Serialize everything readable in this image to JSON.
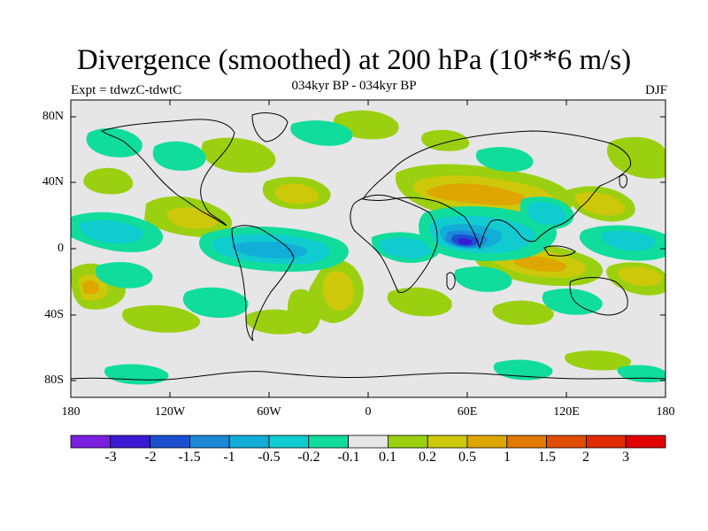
{
  "title": "Divergence (smoothed) at 200 hPa (10**6 m/s)",
  "experiment": "Expt = tdwzC-tdwtC",
  "period": "034kyr BP - 034kyr BP",
  "season": "DJF",
  "map": {
    "lat_ticks": [
      "80N",
      "40N",
      "0",
      "40S",
      "80S"
    ],
    "lon_ticks": [
      "180",
      "120W",
      "60W",
      "0",
      "60E",
      "120E",
      "180"
    ],
    "background_color": "#e6e6e6"
  },
  "colorbar": {
    "levels": [
      "-3",
      "-2",
      "-1.5",
      "-1",
      "-0.5",
      "-0.2",
      "-0.1",
      "0.1",
      "0.2",
      "0.5",
      "1",
      "1.5",
      "2",
      "3"
    ],
    "colors": [
      "#7a1fe0",
      "#3a1ad4",
      "#1c50d0",
      "#1c88d8",
      "#12aed8",
      "#10ccd0",
      "#10dc9c",
      "#e6e6e6",
      "#9ad010",
      "#cec80a",
      "#dea600",
      "#e07a00",
      "#e04e00",
      "#e02a00",
      "#e00000"
    ]
  },
  "chart_data": {
    "type": "heatmap",
    "title": "Divergence (smoothed) at 200 hPa (10**6 m/s)",
    "xlabel": "",
    "ylabel": "",
    "x_range": [
      -180,
      180
    ],
    "y_range": [
      -90,
      90
    ],
    "contour_levels": [
      -3,
      -2,
      -1.5,
      -1,
      -0.5,
      -0.2,
      -0.1,
      0.1,
      0.2,
      0.5,
      1,
      1.5,
      2,
      3
    ],
    "features": [
      {
        "lon": 60,
        "lat": 3,
        "value": -3
      },
      {
        "lon": 80,
        "lat": 0,
        "value": -1
      },
      {
        "lon": 105,
        "lat": 10,
        "value": -1
      },
      {
        "lon": -75,
        "lat": -5,
        "value": -0.5
      },
      {
        "lon": -120,
        "lat": 0,
        "value": -0.5
      },
      {
        "lon": 60,
        "lat": 22,
        "value": 0.5
      },
      {
        "lon": 90,
        "lat": -12,
        "value": 0.5
      },
      {
        "lon": 130,
        "lat": 20,
        "value": 0.5
      },
      {
        "lon": -55,
        "lat": -20,
        "value": 0.5
      },
      {
        "lon": -170,
        "lat": -25,
        "value": 0.5
      }
    ]
  }
}
